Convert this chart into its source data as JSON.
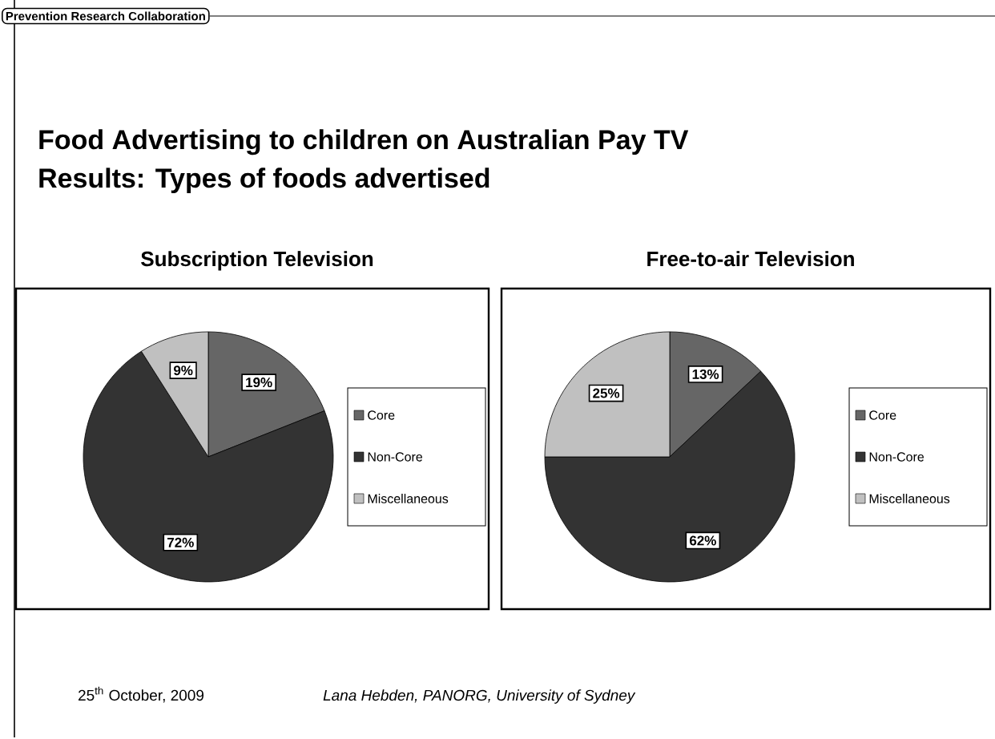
{
  "chart_data": [
    {
      "type": "other",
      "title": "Food Advertising to children on Australian Pay TV",
      "subtitle": "Results: Types of foods advertised",
      "annotations": [
        "Prevention Research Collaboration",
        "25$^{th}$ October, 2009",
        "*Lana Hebden, PANORG, University of Sydney*"
      ]
    },
    {
      "type": "pie",
      "title": "Subscription Television",
      "categories": [
        "Core",
        "Non-Core",
        "Miscellaneous"
      ],
      "values": [
        19,
        72,
        9
      ],
      "value_labels": [
        "19%",
        "72%",
        "9%"
      ],
      "colors": [
        "#666666",
        "#333333",
        "#c0c0c0"
      ],
      "legend": "right"
    },
    {
      "type": "pie",
      "title": "Free-to-air Television",
      "categories": [
        "Core",
        "Non-Core",
        "Miscellaneous"
      ],
      "values": [
        13,
        62,
        25
      ],
      "value_labels": [
        "13%",
        "62%",
        "25%"
      ],
      "colors": [
        "#666666",
        "#333333",
        "#c0c0c0"
      ],
      "legend": "right"
    }
  ]
}
